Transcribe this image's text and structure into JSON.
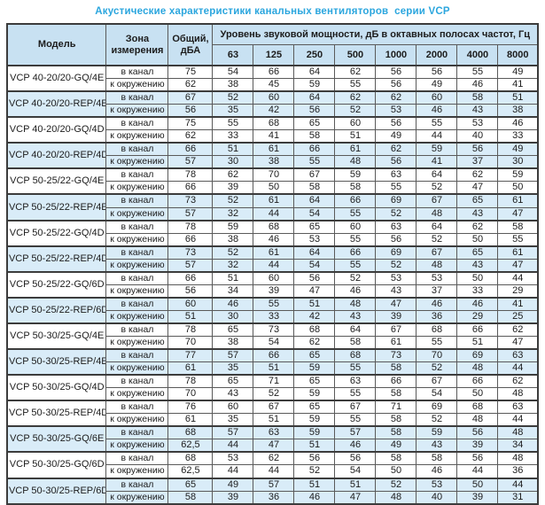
{
  "title": "Акустические характеристики канальных вентиляторов  серии VCP",
  "colors": {
    "title_text": "#2ba6de",
    "header_fill": "#c8e1f2",
    "shaded_row_fill": "#d9ecf8",
    "border_dark": "#3c3c3c",
    "border_mid": "#5a5a5a",
    "cell_text": "#1c1c1c"
  },
  "table": {
    "headers": {
      "model": "Модель",
      "zone": "Зона измерения",
      "total": "Общий, дБА",
      "band_group": "Уровень звуковой мощности, дБ в октавных полосах частот, Гц",
      "frequencies": [
        "63",
        "125",
        "250",
        "500",
        "1000",
        "2000",
        "4000",
        "8000"
      ]
    },
    "zone_labels": [
      "в канал",
      "к окружению"
    ],
    "groups": [
      {
        "model": "VCP 40-20/20-GQ/4E",
        "shaded": false,
        "rows": [
          {
            "zone": "в канал",
            "total": "75",
            "bands": [
              54,
              66,
              64,
              62,
              56,
              56,
              55,
              49
            ]
          },
          {
            "zone": "к окружению",
            "total": "62",
            "bands": [
              38,
              45,
              59,
              55,
              56,
              49,
              46,
              41
            ]
          }
        ]
      },
      {
        "model": "VCP 40-20/20-REP/4E",
        "shaded": true,
        "rows": [
          {
            "zone": "в канал",
            "total": "67",
            "bands": [
              52,
              60,
              64,
              62,
              62,
              60,
              58,
              51
            ]
          },
          {
            "zone": "к окружению",
            "total": "56",
            "bands": [
              35,
              42,
              56,
              52,
              53,
              46,
              43,
              38
            ]
          }
        ]
      },
      {
        "model": "VCP 40-20/20-GQ/4D",
        "shaded": false,
        "rows": [
          {
            "zone": "в канал",
            "total": "75",
            "bands": [
              55,
              68,
              65,
              60,
              56,
              55,
              53,
              46
            ]
          },
          {
            "zone": "к окружению",
            "total": "62",
            "bands": [
              33,
              41,
              58,
              51,
              49,
              44,
              40,
              33
            ]
          }
        ]
      },
      {
        "model": "VCP 40-20/20-REP/4D",
        "shaded": true,
        "rows": [
          {
            "zone": "в канал",
            "total": "66",
            "bands": [
              51,
              61,
              66,
              61,
              62,
              59,
              56,
              49
            ]
          },
          {
            "zone": "к окружению",
            "total": "57",
            "bands": [
              30,
              38,
              55,
              48,
              56,
              41,
              37,
              30
            ]
          }
        ]
      },
      {
        "model": "VCP 50-25/22-GQ/4E",
        "shaded": false,
        "rows": [
          {
            "zone": "в канал",
            "total": "78",
            "bands": [
              62,
              70,
              67,
              59,
              63,
              64,
              62,
              59
            ]
          },
          {
            "zone": "к окружению",
            "total": "66",
            "bands": [
              39,
              50,
              58,
              58,
              55,
              52,
              47,
              50
            ]
          }
        ]
      },
      {
        "model": "VCP 50-25/22-REP/4E",
        "shaded": true,
        "rows": [
          {
            "zone": "в канал",
            "total": "73",
            "bands": [
              52,
              61,
              64,
              66,
              69,
              67,
              65,
              61
            ]
          },
          {
            "zone": "к окружению",
            "total": "57",
            "bands": [
              32,
              44,
              54,
              55,
              52,
              48,
              43,
              47
            ]
          }
        ]
      },
      {
        "model": "VCP 50-25/22-GQ/4D",
        "shaded": false,
        "rows": [
          {
            "zone": "в канал",
            "total": "78",
            "bands": [
              59,
              68,
              65,
              60,
              63,
              64,
              62,
              58
            ]
          },
          {
            "zone": "к окружению",
            "total": "66",
            "bands": [
              38,
              46,
              53,
              55,
              56,
              52,
              50,
              55
            ]
          }
        ]
      },
      {
        "model": "VCP 50-25/22-REP/4D",
        "shaded": true,
        "rows": [
          {
            "zone": "в канал",
            "total": "73",
            "bands": [
              52,
              61,
              64,
              66,
              69,
              67,
              65,
              61
            ]
          },
          {
            "zone": "к окружению",
            "total": "57",
            "bands": [
              32,
              44,
              54,
              55,
              52,
              48,
              43,
              47
            ]
          }
        ]
      },
      {
        "model": "VCP 50-25/22-GQ/6D",
        "shaded": false,
        "rows": [
          {
            "zone": "в канал",
            "total": "66",
            "bands": [
              51,
              60,
              56,
              52,
              53,
              53,
              50,
              44
            ]
          },
          {
            "zone": "к окружению",
            "total": "56",
            "bands": [
              34,
              39,
              47,
              46,
              43,
              37,
              33,
              29
            ]
          }
        ]
      },
      {
        "model": "VCP 50-25/22-REP/6D",
        "shaded": true,
        "rows": [
          {
            "zone": "в канал",
            "total": "60",
            "bands": [
              46,
              55,
              51,
              48,
              47,
              46,
              46,
              41
            ]
          },
          {
            "zone": "к окружению",
            "total": "51",
            "bands": [
              30,
              33,
              42,
              43,
              39,
              36,
              29,
              25
            ]
          }
        ]
      },
      {
        "model": "VCP 50-30/25-GQ/4E",
        "shaded": false,
        "rows": [
          {
            "zone": "в канал",
            "total": "78",
            "bands": [
              65,
              73,
              68,
              64,
              67,
              68,
              66,
              62
            ]
          },
          {
            "zone": "к окружению",
            "total": "70",
            "bands": [
              38,
              54,
              62,
              58,
              61,
              55,
              51,
              47
            ]
          }
        ]
      },
      {
        "model": "VCP 50-30/25-REP/4E",
        "shaded": true,
        "rows": [
          {
            "zone": "в канал",
            "total": "77",
            "bands": [
              57,
              66,
              65,
              68,
              73,
              70,
              69,
              63
            ]
          },
          {
            "zone": "к окружению",
            "total": "61",
            "bands": [
              35,
              51,
              59,
              55,
              58,
              52,
              48,
              44
            ]
          }
        ]
      },
      {
        "model": "VCP 50-30/25-GQ/4D",
        "shaded": false,
        "rows": [
          {
            "zone": "в канал",
            "total": "78",
            "bands": [
              65,
              71,
              65,
              63,
              66,
              67,
              66,
              62
            ]
          },
          {
            "zone": "к окружению",
            "total": "70",
            "bands": [
              43,
              52,
              59,
              55,
              58,
              54,
              50,
              48
            ]
          }
        ]
      },
      {
        "model": "VCP 50-30/25-REP/4D",
        "shaded": false,
        "rows": [
          {
            "zone": "в канал",
            "total": "76",
            "bands": [
              60,
              67,
              65,
              67,
              71,
              69,
              68,
              63
            ]
          },
          {
            "zone": "к окружению",
            "total": "61",
            "bands": [
              35,
              51,
              59,
              55,
              58,
              52,
              48,
              44
            ]
          }
        ]
      },
      {
        "model": "VCP 50-30/25-GQ/6E",
        "shaded": true,
        "rows": [
          {
            "zone": "в канал",
            "total": "68",
            "bands": [
              57,
              63,
              59,
              57,
              58,
              59,
              56,
              48
            ]
          },
          {
            "zone": "к окружению",
            "total": "62,5",
            "bands": [
              44,
              47,
              51,
              46,
              49,
              43,
              39,
              34
            ]
          }
        ]
      },
      {
        "model": "VCP 50-30/25-GQ/6D",
        "shaded": false,
        "rows": [
          {
            "zone": "в канал",
            "total": "68",
            "bands": [
              53,
              62,
              56,
              56,
              58,
              58,
              56,
              48
            ]
          },
          {
            "zone": "к окружению",
            "total": "62,5",
            "bands": [
              44,
              44,
              52,
              54,
              50,
              46,
              44,
              36
            ]
          }
        ]
      },
      {
        "model": "VCP 50-30/25-REP/6D",
        "shaded": true,
        "rows": [
          {
            "zone": "в канал",
            "total": "65",
            "bands": [
              49,
              57,
              51,
              51,
              52,
              53,
              50,
              44
            ]
          },
          {
            "zone": "к окружению",
            "total": "58",
            "bands": [
              39,
              36,
              46,
              47,
              48,
              40,
              39,
              31
            ]
          }
        ]
      }
    ]
  }
}
